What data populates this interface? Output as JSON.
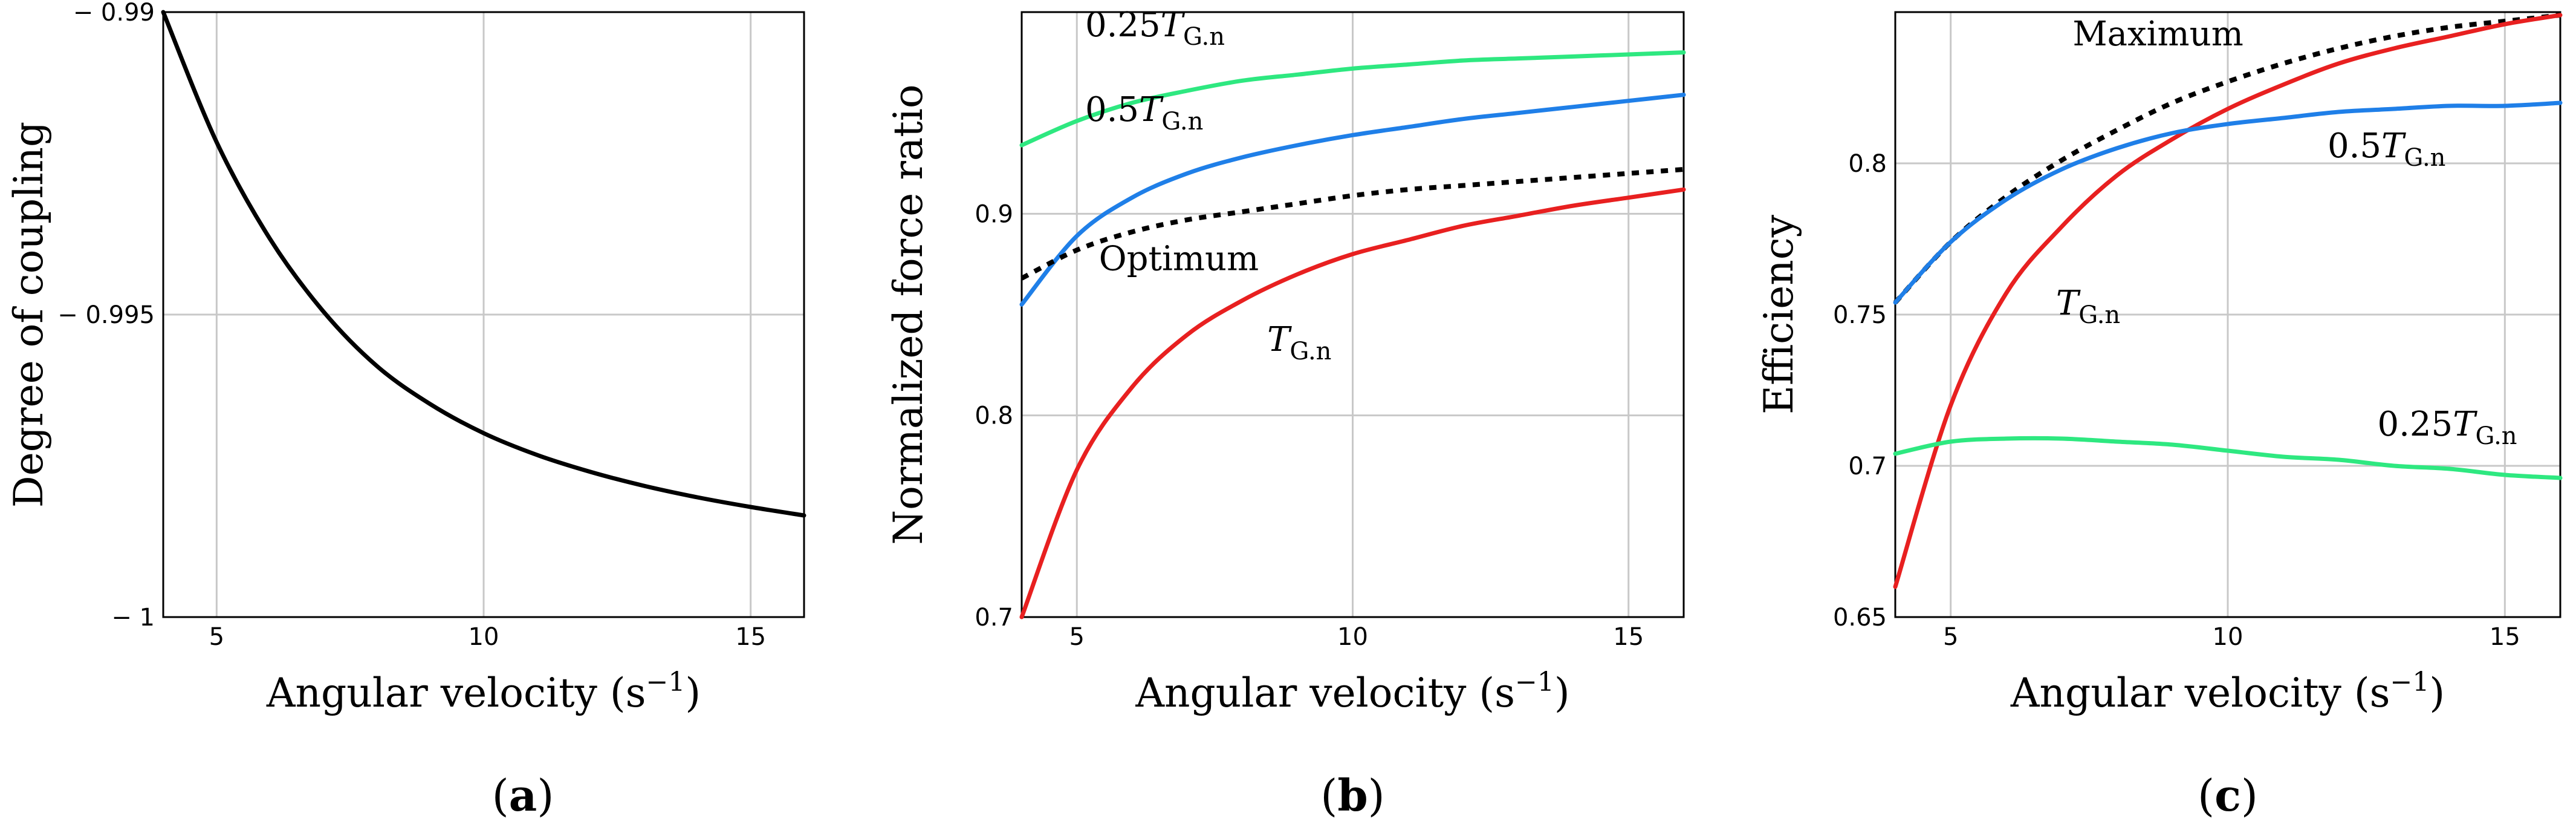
{
  "chart_data": [
    {
      "type": "line",
      "panel_label": "a",
      "xlabel": "Angular velocity (s",
      "xlabel_exp": "−1",
      "xlabel_close": ")",
      "ylabel": "Degree of coupling",
      "xlim": [
        4,
        16
      ],
      "ylim": [
        -1,
        -0.99
      ],
      "xticks": [
        5,
        10,
        15
      ],
      "yticks": [
        -1,
        -0.995,
        -0.99
      ],
      "ytick_labels": [
        "− 1",
        "− 0.995",
        "− 0.99"
      ],
      "grid": true,
      "series": [
        {
          "name": "Degree of coupling",
          "color": "#000000",
          "dash": "solid",
          "x": [
            4,
            5,
            6,
            7,
            8,
            9,
            10,
            11,
            12,
            13,
            14,
            15,
            16
          ],
          "y": [
            -0.99,
            -0.99215,
            -0.99375,
            -0.99495,
            -0.99585,
            -0.99648,
            -0.99696,
            -0.99732,
            -0.9976,
            -0.99783,
            -0.99802,
            -0.99818,
            -0.99832
          ]
        }
      ],
      "annotations": []
    },
    {
      "type": "line",
      "panel_label": "b",
      "xlabel": "Angular velocity (s",
      "xlabel_exp": "−1",
      "xlabel_close": ")",
      "ylabel": "Normalized force ratio",
      "xlim": [
        4,
        16
      ],
      "ylim": [
        0.7,
        1.0
      ],
      "xticks": [
        5,
        10,
        15
      ],
      "yticks": [
        0.7,
        0.8,
        0.9
      ],
      "ytick_labels": [
        "0.7",
        "0.8",
        "0.9"
      ],
      "grid": true,
      "series": [
        {
          "name": "0.25T_G.n",
          "color": "#2ee880",
          "dash": "solid",
          "x": [
            4,
            5,
            6,
            7,
            8,
            9,
            10,
            11,
            12,
            13,
            14,
            15,
            16
          ],
          "y": [
            0.934,
            0.946,
            0.955,
            0.961,
            0.966,
            0.969,
            0.972,
            0.974,
            0.976,
            0.977,
            0.978,
            0.979,
            0.98
          ]
        },
        {
          "name": "0.5T_G.n",
          "color": "#1f7fe8",
          "dash": "solid",
          "x": [
            4,
            5,
            6,
            7,
            8,
            9,
            10,
            11,
            12,
            13,
            14,
            15,
            16
          ],
          "y": [
            0.855,
            0.889,
            0.908,
            0.92,
            0.928,
            0.934,
            0.939,
            0.943,
            0.947,
            0.95,
            0.953,
            0.956,
            0.959
          ]
        },
        {
          "name": "Optimum",
          "color": "#000000",
          "dash": "dashed",
          "x": [
            4,
            5,
            6,
            7,
            8,
            9,
            10,
            11,
            12,
            13,
            14,
            15,
            16
          ],
          "y": [
            0.868,
            0.882,
            0.891,
            0.897,
            0.901,
            0.905,
            0.909,
            0.912,
            0.914,
            0.916,
            0.918,
            0.92,
            0.922
          ]
        },
        {
          "name": "T_G.n",
          "color": "#e82020",
          "dash": "solid",
          "x": [
            4,
            5,
            6,
            7,
            8,
            9,
            10,
            11,
            12,
            13,
            14,
            15,
            16
          ],
          "y": [
            0.7,
            0.773,
            0.814,
            0.84,
            0.857,
            0.87,
            0.88,
            0.887,
            0.894,
            0.899,
            0.904,
            0.908,
            0.912
          ]
        }
      ],
      "annotations": [
        {
          "coef": "0.25",
          "sym": "T",
          "sub": "G.n",
          "x": 5.15,
          "y": 0.988
        },
        {
          "coef": "0.5",
          "sym": "T",
          "sub": "G.n",
          "x": 5.15,
          "y": 0.946
        },
        {
          "coef": "",
          "sym": "Optimum",
          "sub": "",
          "x": 5.4,
          "y": 0.872
        },
        {
          "coef": "",
          "sym": "T",
          "sub": "G.n",
          "x": 8.45,
          "y": 0.832
        }
      ]
    },
    {
      "type": "line",
      "panel_label": "c",
      "xlabel": "Angular velocity (s",
      "xlabel_exp": "−1",
      "xlabel_close": ")",
      "ylabel": "Efficiency",
      "xlim": [
        4,
        16
      ],
      "ylim": [
        0.65,
        0.85
      ],
      "xticks": [
        5,
        10,
        15
      ],
      "yticks": [
        0.65,
        0.7,
        0.75,
        0.8
      ],
      "ytick_labels": [
        "0.65",
        "0.7",
        "0.75",
        "0.8"
      ],
      "grid": true,
      "series": [
        {
          "name": "Maximum",
          "color": "#000000",
          "dash": "dashed",
          "x": [
            4,
            5,
            6,
            7,
            8,
            9,
            10,
            11,
            12,
            13,
            14,
            15,
            16
          ],
          "y": [
            0.754,
            0.774,
            0.789,
            0.801,
            0.811,
            0.82,
            0.827,
            0.833,
            0.838,
            0.842,
            0.845,
            0.847,
            0.849
          ]
        },
        {
          "name": "T_G.n",
          "color": "#e82020",
          "dash": "solid",
          "x": [
            4,
            5,
            6,
            7,
            8,
            9,
            10,
            11,
            12,
            13,
            14,
            15,
            16
          ],
          "y": [
            0.66,
            0.72,
            0.757,
            0.779,
            0.796,
            0.808,
            0.818,
            0.826,
            0.833,
            0.838,
            0.842,
            0.846,
            0.849
          ]
        },
        {
          "name": "0.5T_G.n",
          "color": "#1f7fe8",
          "dash": "solid",
          "x": [
            4,
            5,
            6,
            7,
            8,
            9,
            10,
            11,
            12,
            13,
            14,
            15,
            16
          ],
          "y": [
            0.754,
            0.774,
            0.788,
            0.798,
            0.805,
            0.81,
            0.813,
            0.815,
            0.817,
            0.818,
            0.819,
            0.819,
            0.82
          ]
        },
        {
          "name": "0.25T_G.n",
          "color": "#2ee880",
          "dash": "solid",
          "x": [
            4,
            5,
            6,
            7,
            8,
            9,
            10,
            11,
            12,
            13,
            14,
            15,
            16
          ],
          "y": [
            0.704,
            0.708,
            0.709,
            0.709,
            0.708,
            0.707,
            0.705,
            0.703,
            0.702,
            0.7,
            0.699,
            0.697,
            0.696
          ]
        }
      ],
      "annotations": [
        {
          "coef": "",
          "sym": "Maximum",
          "sub": "",
          "x": 7.2,
          "y": 0.839
        },
        {
          "coef": "0.5",
          "sym": "T",
          "sub": "G.n",
          "x": 11.8,
          "y": 0.802
        },
        {
          "coef": "",
          "sym": "T",
          "sub": "G.n",
          "x": 6.9,
          "y": 0.75
        },
        {
          "coef": "0.25",
          "sym": "T",
          "sub": "G.n",
          "x": 12.7,
          "y": 0.71
        }
      ]
    }
  ]
}
